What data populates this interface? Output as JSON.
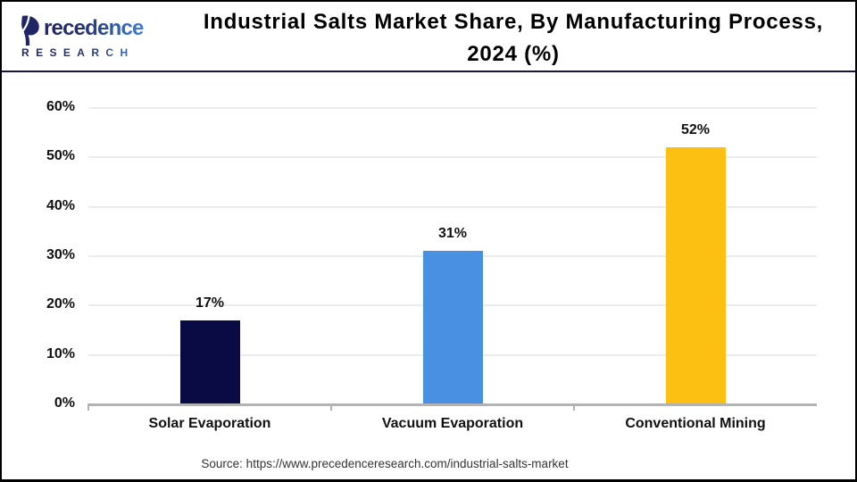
{
  "logo": {
    "brand_rest": "recedence",
    "subtitle": "RESEARCH",
    "color_dark": "#1F2566",
    "color_light": "#3F7EDC"
  },
  "title": {
    "line1": "Industrial Salts Market Share, By Manufacturing Process,",
    "line2": "2024 (%)"
  },
  "source": "Source: https://www.precedenceresearch.com/industrial-salts-market",
  "chart_data": {
    "type": "bar",
    "title": "Industrial Salts Market Share, By Manufacturing Process, 2024 (%)",
    "categories": [
      "Solar Evaporation",
      "Vacuum Evaporation",
      "Conventional Mining"
    ],
    "values": [
      17,
      31,
      52
    ],
    "value_labels": [
      "17%",
      "31%",
      "52%"
    ],
    "bar_colors": [
      "#0A0A44",
      "#4A90E2",
      "#FCC013"
    ],
    "xlabel": "",
    "ylabel": "",
    "ylim": [
      0,
      60
    ],
    "ytick_step": 10,
    "ytick_labels": [
      "0%",
      "10%",
      "20%",
      "30%",
      "40%",
      "50%",
      "60%"
    ],
    "grid": true,
    "legend": false
  }
}
